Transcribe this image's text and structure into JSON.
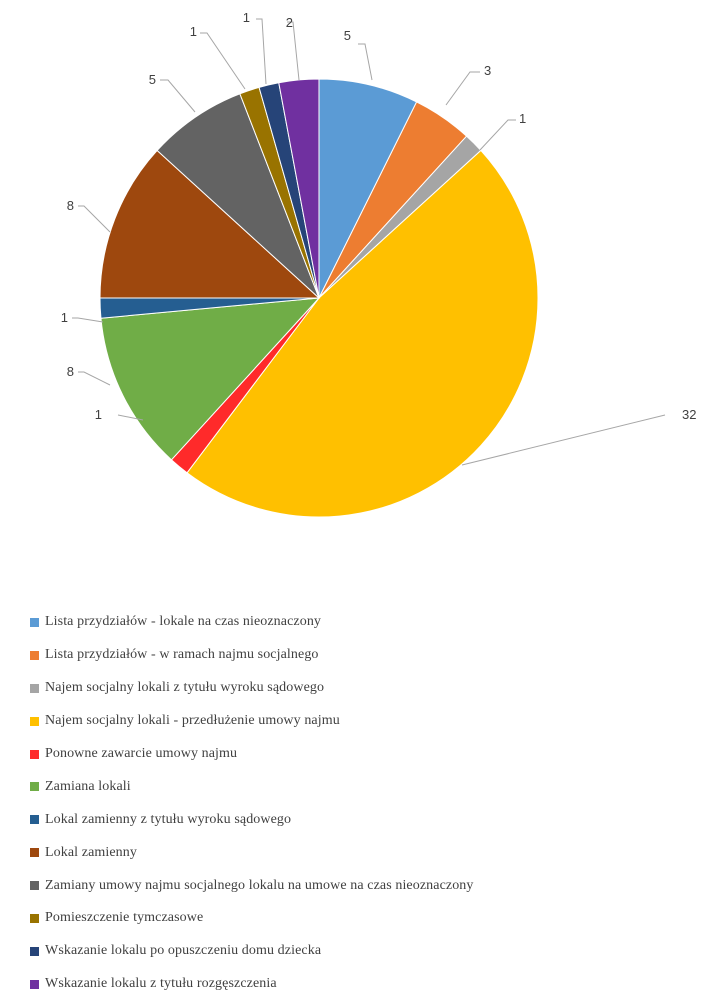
{
  "chart_data": {
    "type": "pie",
    "title": "",
    "slices": [
      {
        "label": "Lista przydziałów - lokale na czas nieoznaczony",
        "value": 5,
        "color": "#5b9bd5"
      },
      {
        "label": "Lista przydziałów - w ramach najmu socjalnego",
        "value": 3,
        "color": "#ed7d31"
      },
      {
        "label": "Najem socjalny lokali z tytułu wyroku sądowego",
        "value": 1,
        "color": "#a5a5a5"
      },
      {
        "label": "Najem socjalny lokali - przedłużenie umowy najmu",
        "value": 32,
        "color": "#ffc000"
      },
      {
        "label": "Ponowne zawarcie umowy najmu",
        "value": 1,
        "color": "#ff2a2a"
      },
      {
        "label": "Zamiana lokali",
        "value": 8,
        "color": "#70ad47"
      },
      {
        "label": "Lokal zamienny z tytułu wyroku sądowego",
        "value": 1,
        "color": "#255e91"
      },
      {
        "label": "Lokal zamienny",
        "value": 8,
        "color": "#9e480e"
      },
      {
        "label": "Zamiany umowy najmu socjalnego lokalu na umowe na czas nieoznaczony",
        "value": 5,
        "color": "#636363"
      },
      {
        "label": "Pomieszczenie tymczasowe",
        "value": 1,
        "color": "#997300"
      },
      {
        "label": "Wskazanie lokalu po opuszczeniu domu dziecka",
        "value": 1,
        "color": "#264478"
      },
      {
        "label": "Wskazanie lokalu z tytułu rozgęszczenia",
        "value": 2,
        "color": "#7030a0"
      }
    ],
    "data_labels": [
      "5",
      "3",
      "1",
      "32",
      "1",
      "8",
      "1",
      "8",
      "5",
      "1",
      "1",
      "2"
    ],
    "legend_position": "bottom"
  }
}
